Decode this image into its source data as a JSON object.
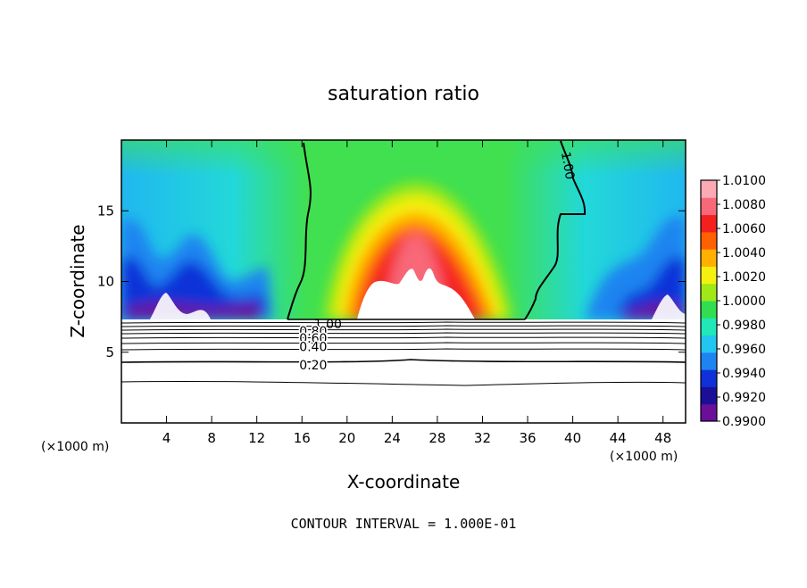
{
  "chart_data": {
    "type": "heatmap",
    "title": "saturation ratio",
    "xlabel": "X-coordinate",
    "ylabel": "Z-coordinate",
    "x_unit_left": "(×1000 m)",
    "x_unit_right": "(×1000 m)",
    "footer": "CONTOUR INTERVAL = 1.000E-01",
    "xlim": [
      0,
      50
    ],
    "ylim": [
      0,
      20
    ],
    "x_ticks": [
      4,
      8,
      12,
      16,
      20,
      24,
      28,
      32,
      36,
      40,
      44,
      48
    ],
    "x_tick_labels": [
      "4",
      "8",
      "12",
      "16",
      "20",
      "24",
      "28",
      "32",
      "36",
      "40",
      "44",
      "48"
    ],
    "y_ticks": [
      5,
      10,
      15
    ],
    "y_tick_labels": [
      "5",
      "10",
      "15"
    ],
    "colorbar": {
      "range": [
        0.99,
        1.01
      ],
      "tick_labels": [
        "1.0100",
        "1.0080",
        "1.0060",
        "1.0040",
        "1.0020",
        "1.0000",
        "0.9980",
        "0.9960",
        "0.9940",
        "0.9920",
        "0.9900"
      ],
      "colors": [
        "#6a0f9a",
        "#1b0f98",
        "#1030d8",
        "#1f84f0",
        "#22c6f0",
        "#20e8b6",
        "#30de50",
        "#a0e818",
        "#f4f010",
        "#ffb000",
        "#ff6000",
        "#f42020",
        "#f86878",
        "#fcaab4"
      ]
    },
    "contour_labels": [
      {
        "text": "1.00",
        "x": 18.3,
        "z": 7.0
      },
      {
        "text": "1.00",
        "x": 39.6,
        "z": 18.2
      },
      {
        "text": "0.80",
        "x": 17.0,
        "z": 6.5
      },
      {
        "text": "0.60",
        "x": 17.0,
        "z": 6.0
      },
      {
        "text": "0.40",
        "x": 17.0,
        "z": 5.4
      },
      {
        "text": "0.20",
        "x": 17.0,
        "z": 4.1
      }
    ]
  }
}
